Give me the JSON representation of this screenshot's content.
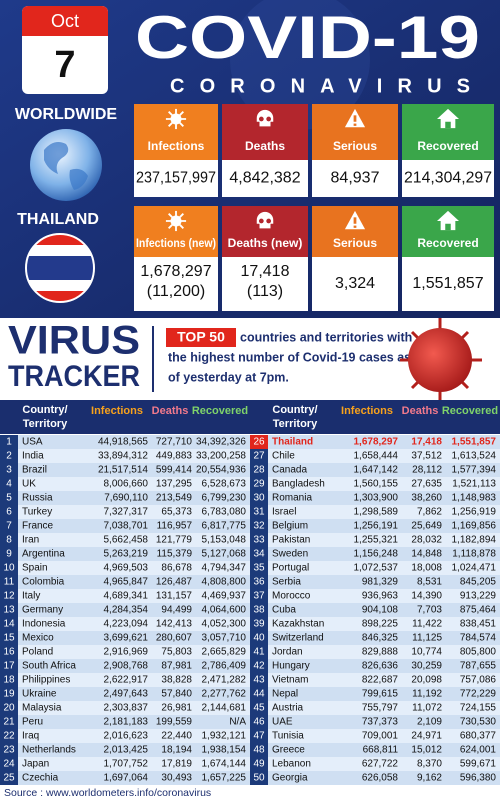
{
  "date": {
    "month": "Oct",
    "day": "7"
  },
  "title": "COVID-19",
  "subtitle": "CORONAVIRUS",
  "worldwide": {
    "label": "WORLDWIDE",
    "cards": [
      {
        "label": "Infections",
        "value": "237,157,997"
      },
      {
        "label": "Deaths",
        "value": "4,842,382"
      },
      {
        "label": "Serious",
        "value": "84,937"
      },
      {
        "label": "Recovered",
        "value": "214,304,297"
      }
    ]
  },
  "thailand": {
    "label": "THAILAND",
    "cards": [
      {
        "label": "Infections (new)",
        "value": "1,678,297",
        "sub": "(11,200)"
      },
      {
        "label": "Deaths (new)",
        "value": "17,418",
        "sub": "(113)"
      },
      {
        "label": "Serious",
        "value": "3,324"
      },
      {
        "label": "Recovered",
        "value": "1,551,857"
      }
    ]
  },
  "tracker": {
    "title_1": "VIRUS",
    "title_2": "TRACKER",
    "badge": "TOP 50",
    "text_lines": [
      "countries and territories with",
      "the highest number of Covid-19 cases as",
      "of yesterday at 7pm."
    ]
  },
  "table": {
    "country_header": [
      "Country/",
      "Territory"
    ],
    "headers": [
      "Infections",
      "Deaths",
      "Recovered"
    ],
    "rows": [
      [
        "1",
        "USA",
        "44,918,565",
        "727,710",
        "34,392,326"
      ],
      [
        "2",
        "India",
        "33,894,312",
        "449,883",
        "33,200,258"
      ],
      [
        "3",
        "Brazil",
        "21,517,514",
        "599,414",
        "20,554,936"
      ],
      [
        "4",
        "UK",
        "8,006,660",
        "137,295",
        "6,528,673"
      ],
      [
        "5",
        "Russia",
        "7,690,110",
        "213,549",
        "6,799,230"
      ],
      [
        "6",
        "Turkey",
        "7,327,317",
        "65,373",
        "6,783,080"
      ],
      [
        "7",
        "France",
        "7,038,701",
        "116,957",
        "6,817,775"
      ],
      [
        "8",
        "Iran",
        "5,662,458",
        "121,779",
        "5,153,048"
      ],
      [
        "9",
        "Argentina",
        "5,263,219",
        "115,379",
        "5,127,068"
      ],
      [
        "10",
        "Spain",
        "4,969,503",
        "86,678",
        "4,794,347"
      ],
      [
        "11",
        "Colombia",
        "4,965,847",
        "126,487",
        "4,808,800"
      ],
      [
        "12",
        "Italy",
        "4,689,341",
        "131,157",
        "4,469,937"
      ],
      [
        "13",
        "Germany",
        "4,284,354",
        "94,499",
        "4,064,600"
      ],
      [
        "14",
        "Indonesia",
        "4,223,094",
        "142,413",
        "4,052,300"
      ],
      [
        "15",
        "Mexico",
        "3,699,621",
        "280,607",
        "3,057,710"
      ],
      [
        "16",
        "Poland",
        "2,916,969",
        "75,803",
        "2,665,829"
      ],
      [
        "17",
        "South Africa",
        "2,908,768",
        "87,981",
        "2,786,409"
      ],
      [
        "18",
        "Philippines",
        "2,622,917",
        "38,828",
        "2,471,282"
      ],
      [
        "19",
        "Ukraine",
        "2,497,643",
        "57,840",
        "2,277,762"
      ],
      [
        "20",
        "Malaysia",
        "2,303,837",
        "26,981",
        "2,144,681"
      ],
      [
        "21",
        "Peru",
        "2,181,183",
        "199,559",
        "N/A"
      ],
      [
        "22",
        "Iraq",
        "2,016,623",
        "22,440",
        "1,932,121"
      ],
      [
        "23",
        "Netherlands",
        "2,013,425",
        "18,194",
        "1,938,154"
      ],
      [
        "24",
        "Japan",
        "1,707,752",
        "17,819",
        "1,674,144"
      ],
      [
        "25",
        "Czechia",
        "1,697,064",
        "30,493",
        "1,657,225"
      ],
      [
        "26",
        "Thailand",
        "1,678,297",
        "17,418",
        "1,551,857"
      ],
      [
        "27",
        "Chile",
        "1,658,444",
        "37,512",
        "1,613,524"
      ],
      [
        "28",
        "Canada",
        "1,647,142",
        "28,112",
        "1,577,394"
      ],
      [
        "29",
        "Bangladesh",
        "1,560,155",
        "27,635",
        "1,521,113"
      ],
      [
        "30",
        "Romania",
        "1,303,900",
        "38,260",
        "1,148,983"
      ],
      [
        "31",
        "Israel",
        "1,298,589",
        "7,862",
        "1,256,919"
      ],
      [
        "32",
        "Belgium",
        "1,256,191",
        "25,649",
        "1,169,856"
      ],
      [
        "33",
        "Pakistan",
        "1,255,321",
        "28,032",
        "1,182,894"
      ],
      [
        "34",
        "Sweden",
        "1,156,248",
        "14,848",
        "1,118,878"
      ],
      [
        "35",
        "Portugal",
        "1,072,537",
        "18,008",
        "1,024,471"
      ],
      [
        "36",
        "Serbia",
        "981,329",
        "8,531",
        "845,205"
      ],
      [
        "37",
        "Morocco",
        "936,963",
        "14,390",
        "913,229"
      ],
      [
        "38",
        "Cuba",
        "904,108",
        "7,703",
        "875,464"
      ],
      [
        "39",
        "Kazakhstan",
        "898,225",
        "11,422",
        "838,451"
      ],
      [
        "40",
        "Switzerland",
        "846,325",
        "11,125",
        "784,574"
      ],
      [
        "41",
        "Jordan",
        "829,888",
        "10,774",
        "805,800"
      ],
      [
        "42",
        "Hungary",
        "826,636",
        "30,259",
        "787,655"
      ],
      [
        "43",
        "Vietnam",
        "822,687",
        "20,098",
        "757,086"
      ],
      [
        "44",
        "Nepal",
        "799,615",
        "11,192",
        "772,229"
      ],
      [
        "45",
        "Austria",
        "755,797",
        "11,072",
        "724,155"
      ],
      [
        "46",
        "UAE",
        "737,373",
        "2,109",
        "730,530"
      ],
      [
        "47",
        "Tunisia",
        "709,001",
        "24,971",
        "680,377"
      ],
      [
        "48",
        "Greece",
        "668,811",
        "15,012",
        "624,001"
      ],
      [
        "49",
        "Lebanon",
        "627,722",
        "8,370",
        "599,671"
      ],
      [
        "50",
        "Georgia",
        "626,058",
        "9,162",
        "596,380"
      ]
    ]
  },
  "source": "Source : www.worldometers.info/coronavirus"
}
